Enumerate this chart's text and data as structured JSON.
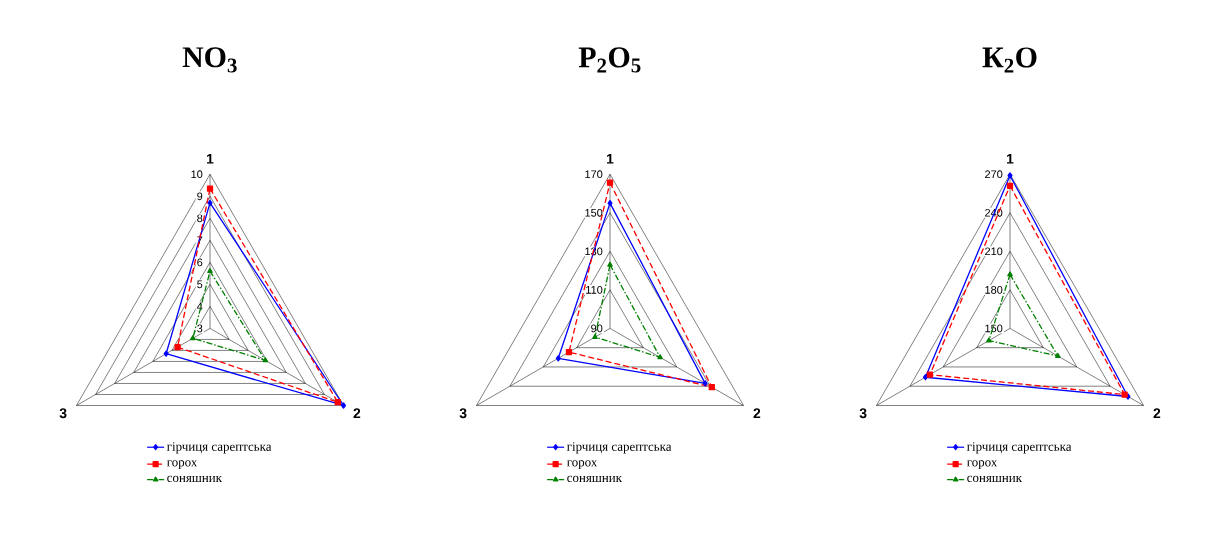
{
  "chart_data": [
    {
      "type": "radar",
      "title": "NO$_{3}$",
      "categories": [
        "1",
        "2",
        "3"
      ],
      "ylim": [
        3,
        10
      ],
      "yticks": [
        3,
        4,
        5,
        6,
        7,
        8,
        9,
        10
      ],
      "grid": true,
      "legend": "bottom",
      "series": [
        {
          "name": "гірчиця сарептська",
          "color": "#0000ff",
          "marker": "diamond",
          "line_style": "solid",
          "values": [
            8.7,
            10,
            5.3
          ]
        },
        {
          "name": "горох",
          "color": "#ff0000",
          "marker": "square",
          "line_style": "dashed",
          "values": [
            9.35,
            9.7,
            4.7
          ]
        },
        {
          "name": "соняшник",
          "color": "#008000",
          "marker": "triangle",
          "line_style": "dashdot",
          "values": [
            5.6,
            5.9,
            3.9
          ]
        }
      ]
    },
    {
      "type": "radar",
      "title": "P$_{2}$O$_{5}$",
      "categories": [
        "1",
        "2",
        "3"
      ],
      "ylim": [
        90,
        170
      ],
      "yticks": [
        90,
        110,
        130,
        150,
        170
      ],
      "grid": true,
      "legend": "bottom",
      "series": [
        {
          "name": "гірчиця сарептська",
          "color": "#0000ff",
          "marker": "diamond",
          "line_style": "solid",
          "values": [
            155,
            147,
            121
          ]
        },
        {
          "name": "горох",
          "color": "#ff0000",
          "marker": "square",
          "line_style": "dashed",
          "values": [
            165.6,
            151,
            114.6
          ]
        },
        {
          "name": "соняшник",
          "color": "#008000",
          "marker": "triangle",
          "line_style": "dashdot",
          "values": [
            123,
            120,
            99
          ]
        }
      ]
    },
    {
      "type": "radar",
      "title": "К$_{2}$O",
      "categories": [
        "1",
        "2",
        "3"
      ],
      "ylim": [
        150,
        270
      ],
      "yticks": [
        150,
        180,
        210,
        240,
        270
      ],
      "grid": true,
      "legend": "bottom",
      "series": [
        {
          "name": "гірчиця сарептська",
          "color": "#0000ff",
          "marker": "diamond",
          "line_style": "solid",
          "values": [
            269,
            256,
            226
          ]
        },
        {
          "name": "горох",
          "color": "#ff0000",
          "marker": "square",
          "line_style": "dashed",
          "values": [
            261,
            253,
            222
          ]
        },
        {
          "name": "соняшник",
          "color": "#008000",
          "marker": "triangle",
          "line_style": "dashdot",
          "values": [
            192,
            193,
            169
          ]
        }
      ]
    }
  ]
}
